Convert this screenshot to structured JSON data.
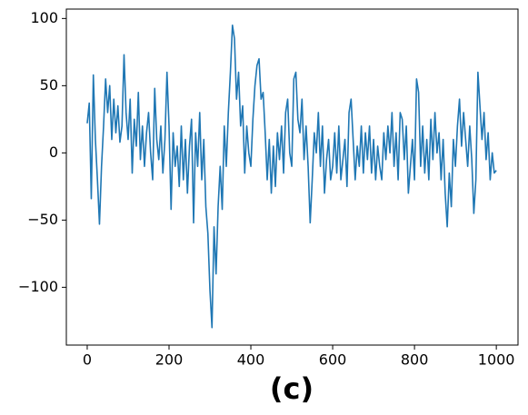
{
  "chart_data": {
    "type": "line",
    "xlabel": "(c)",
    "x": [
      0,
      5,
      10,
      15,
      20,
      25,
      30,
      35,
      40,
      45,
      50,
      55,
      60,
      65,
      70,
      75,
      80,
      85,
      90,
      95,
      100,
      105,
      110,
      115,
      120,
      125,
      130,
      135,
      140,
      145,
      150,
      155,
      160,
      165,
      170,
      175,
      180,
      185,
      190,
      195,
      200,
      205,
      210,
      215,
      220,
      225,
      230,
      235,
      240,
      245,
      250,
      255,
      260,
      265,
      270,
      275,
      280,
      285,
      290,
      295,
      300,
      305,
      310,
      315,
      320,
      325,
      330,
      335,
      340,
      345,
      350,
      355,
      360,
      365,
      370,
      375,
      380,
      385,
      390,
      395,
      400,
      405,
      410,
      415,
      420,
      425,
      430,
      435,
      440,
      445,
      450,
      455,
      460,
      465,
      470,
      475,
      480,
      485,
      490,
      495,
      500,
      505,
      510,
      515,
      520,
      525,
      530,
      535,
      540,
      545,
      550,
      555,
      560,
      565,
      570,
      575,
      580,
      585,
      590,
      595,
      600,
      605,
      610,
      615,
      620,
      625,
      630,
      635,
      640,
      645,
      650,
      655,
      660,
      665,
      670,
      675,
      680,
      685,
      690,
      695,
      700,
      705,
      710,
      715,
      720,
      725,
      730,
      735,
      740,
      745,
      750,
      755,
      760,
      765,
      770,
      775,
      780,
      785,
      790,
      795,
      800,
      805,
      810,
      815,
      820,
      825,
      830,
      835,
      840,
      845,
      850,
      855,
      860,
      865,
      870,
      875,
      880,
      885,
      890,
      895,
      900,
      905,
      910,
      915,
      920,
      925,
      930,
      935,
      940,
      945,
      950,
      955,
      960,
      965,
      970,
      975,
      980,
      985,
      990,
      995,
      1000
    ],
    "series": [
      {
        "color": "#1f77b4",
        "values": [
          22,
          37,
          -34,
          58,
          10,
          -20,
          -53,
          -10,
          20,
          55,
          30,
          50,
          10,
          40,
          15,
          35,
          8,
          20,
          73,
          30,
          10,
          40,
          -15,
          25,
          5,
          45,
          -5,
          20,
          -10,
          15,
          30,
          0,
          -20,
          48,
          10,
          -5,
          20,
          -15,
          10,
          60,
          20,
          -42,
          15,
          -10,
          5,
          -25,
          20,
          -20,
          10,
          -30,
          5,
          25,
          -52,
          15,
          -10,
          30,
          -20,
          10,
          -40,
          -60,
          -102,
          -130,
          -55,
          -90,
          -40,
          -10,
          -42,
          20,
          -10,
          30,
          60,
          95,
          85,
          40,
          60,
          20,
          35,
          -15,
          20,
          0,
          -10,
          25,
          50,
          65,
          70,
          40,
          45,
          15,
          -20,
          10,
          -30,
          5,
          -25,
          15,
          -5,
          20,
          -15,
          30,
          40,
          0,
          -10,
          55,
          60,
          25,
          15,
          40,
          -5,
          20,
          -10,
          -52,
          -20,
          15,
          0,
          30,
          -10,
          20,
          -30,
          -5,
          10,
          -20,
          -10,
          15,
          -15,
          20,
          -20,
          -5,
          10,
          -25,
          30,
          40,
          10,
          -20,
          5,
          -10,
          20,
          -15,
          15,
          -5,
          20,
          -15,
          10,
          -20,
          5,
          -10,
          -20,
          15,
          -5,
          20,
          0,
          30,
          -10,
          15,
          -20,
          30,
          25,
          -5,
          20,
          -30,
          -10,
          10,
          -20,
          55,
          45,
          -10,
          20,
          -15,
          10,
          -20,
          25,
          -5,
          30,
          0,
          15,
          -20,
          10,
          -30,
          -55,
          -15,
          -40,
          10,
          -10,
          20,
          40,
          5,
          30,
          10,
          -10,
          20,
          -5,
          -45,
          -20,
          60,
          35,
          10,
          30,
          -5,
          15,
          -20,
          0,
          -15,
          -13
        ]
      }
    ],
    "xlim": [
      -51,
      1053
    ],
    "ylim": [
      -143,
      107
    ],
    "xticks": [
      0,
      200,
      400,
      600,
      800,
      1000
    ],
    "yticks": [
      {
        "value": -100,
        "label": "−100"
      },
      {
        "value": -50,
        "label": "−50"
      },
      0,
      50,
      100
    ]
  }
}
